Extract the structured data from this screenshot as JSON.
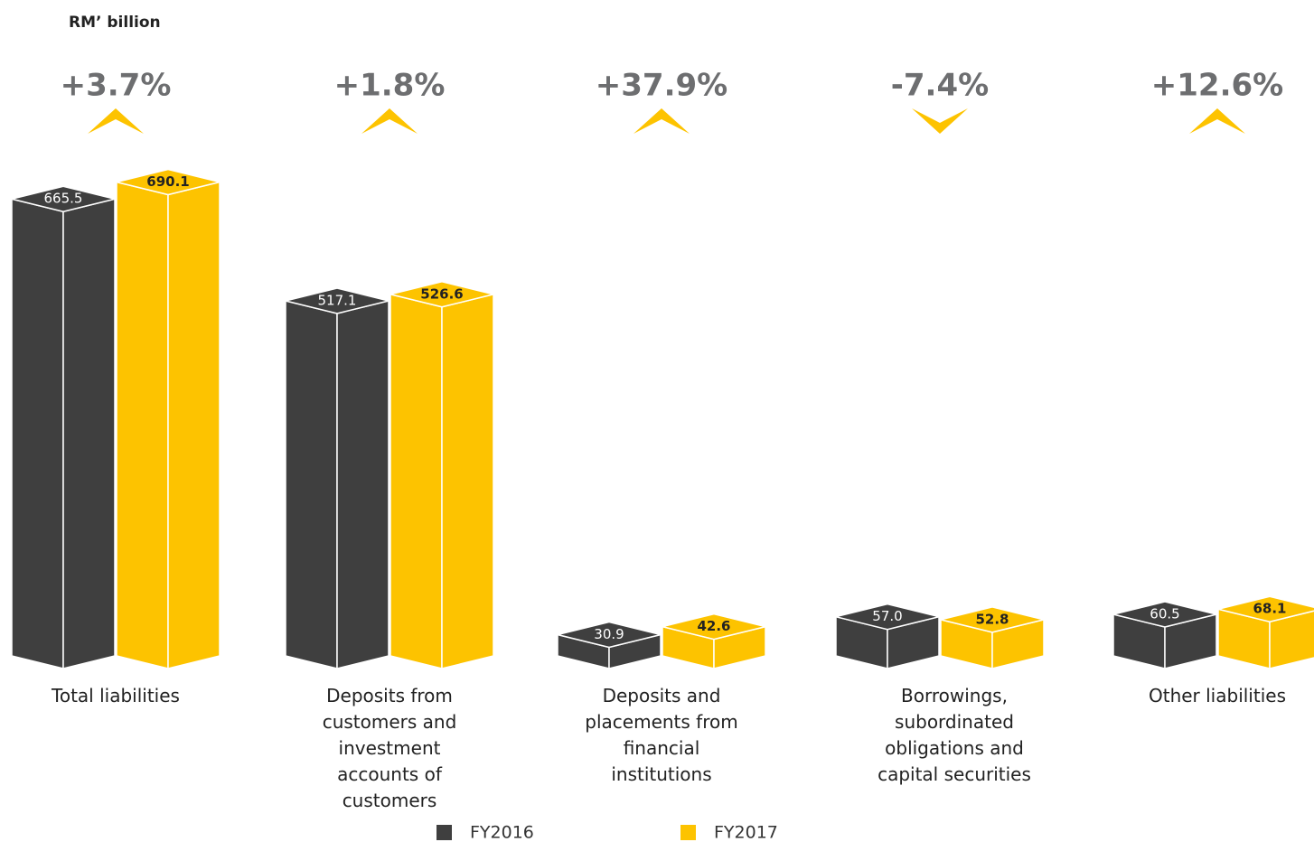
{
  "chart_data": {
    "type": "bar3d",
    "unit_label": "RM’ billion",
    "categories": [
      "Total liabilities",
      "Deposits from customers and investment accounts of customers",
      "Deposits and placements from financial institutions",
      "Borrowings, subordinated obligations and capital securities",
      "Other liabilities"
    ],
    "series": [
      {
        "name": "FY2016",
        "color": "#3f3f3f",
        "values": [
          665.5,
          517.1,
          30.9,
          57.0,
          60.5
        ],
        "value_labels": [
          "665.5",
          "517.1",
          "30.9",
          "57.0",
          "60.5"
        ]
      },
      {
        "name": "FY2017",
        "color": "#fdc300",
        "values": [
          690.1,
          526.6,
          42.6,
          52.8,
          68.1
        ],
        "value_labels": [
          "690.1",
          "526.6",
          "42.6",
          "52.8",
          "68.1"
        ]
      }
    ],
    "changes": {
      "values": [
        3.7,
        1.8,
        37.9,
        -7.4,
        12.6
      ],
      "value_labels": [
        "+3.7%",
        "+1.8%",
        "+37.9%",
        "-7.4%",
        "+12.6%"
      ],
      "color": "#fdc300"
    }
  }
}
